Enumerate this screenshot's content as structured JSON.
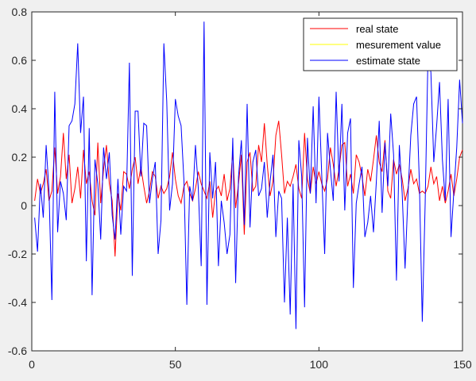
{
  "chart_data": {
    "type": "line",
    "title": "",
    "xlabel": "",
    "ylabel": "",
    "xlim": [
      0,
      150
    ],
    "ylim": [
      -0.6,
      0.8
    ],
    "xticks": [
      0,
      50,
      100,
      150
    ],
    "yticks": [
      -0.6,
      -0.4,
      -0.2,
      0,
      0.2,
      0.4,
      0.6,
      0.8
    ],
    "xtick_labels": [
      "0",
      "50",
      "100",
      "150"
    ],
    "ytick_labels": [
      "-0.6",
      "-0.4",
      "-0.2",
      "0",
      "0.2",
      "0.4",
      "0.6",
      "0.8"
    ],
    "grid": false,
    "legend_position": "top-right",
    "series": [
      {
        "name": "real state",
        "color": "#ff0000",
        "x": [
          1,
          2,
          3,
          4,
          5,
          6,
          7,
          8,
          9,
          10,
          11,
          12,
          13,
          14,
          15,
          16,
          17,
          18,
          19,
          20,
          21,
          22,
          23,
          24,
          25,
          26,
          27,
          28,
          29,
          30,
          31,
          32,
          33,
          34,
          35,
          36,
          37,
          38,
          39,
          40,
          41,
          42,
          43,
          44,
          45,
          46,
          47,
          48,
          49,
          50,
          51,
          52,
          53,
          54,
          55,
          56,
          57,
          58,
          59,
          60,
          61,
          62,
          63,
          64,
          65,
          66,
          67,
          68,
          69,
          70,
          71,
          72,
          73,
          74,
          75,
          76,
          77,
          78,
          79,
          80,
          81,
          82,
          83,
          84,
          85,
          86,
          87,
          88,
          89,
          90,
          91,
          92,
          93,
          94,
          95,
          96,
          97,
          98,
          99,
          100,
          101,
          102,
          103,
          104,
          105,
          106,
          107,
          108,
          109,
          110,
          111,
          112,
          113,
          114,
          115,
          116,
          117,
          118,
          119,
          120,
          121,
          122,
          123,
          124,
          125,
          126,
          127,
          128,
          129,
          130,
          131,
          132,
          133,
          134,
          135,
          136,
          137,
          138,
          139,
          140,
          141,
          142,
          143,
          144,
          145,
          146,
          147,
          148,
          149,
          150
        ],
        "values": [
          0.02,
          0.11,
          0.05,
          0.09,
          0.15,
          0.02,
          0.06,
          0.24,
          0.05,
          0.12,
          0.3,
          0.11,
          0.21,
          0.01,
          0.07,
          0.16,
          0.03,
          0.23,
          0.09,
          0.14,
          0.02,
          -0.04,
          0.26,
          0.01,
          0.15,
          0.25,
          0.09,
          0.02,
          -0.21,
          0.05,
          -0.02,
          0.14,
          0.13,
          0.07,
          0.15,
          0.2,
          0.09,
          0.16,
          0.08,
          0.01,
          0.06,
          0.14,
          0.12,
          0.03,
          0.08,
          0.05,
          0.07,
          0.12,
          0.22,
          0.11,
          0.04,
          0.01,
          0.08,
          0.1,
          0.05,
          0.02,
          0.07,
          0.14,
          0.09,
          0.06,
          0.03,
          0.1,
          -0.05,
          0.06,
          0.08,
          0.04,
          0.13,
          0.02,
          0.07,
          0.22,
          -0.01,
          0.09,
          0.21,
          -0.12,
          0.18,
          0.22,
          0.06,
          0.08,
          0.25,
          0.18,
          0.34,
          0.17,
          0.04,
          0.1,
          0.29,
          0.35,
          0.21,
          0.05,
          0.1,
          0.08,
          0.12,
          0.17,
          0.07,
          0.03,
          0.3,
          0.11,
          0.05,
          0.16,
          0.09,
          0.14,
          0.09,
          0.06,
          0.11,
          0.24,
          0.17,
          0.08,
          0.15,
          0.25,
          0.26,
          0.08,
          0.13,
          0.05,
          0.21,
          0.18,
          0.12,
          0.04,
          0.15,
          0.1,
          0.19,
          0.29,
          0.18,
          0.14,
          0.27,
          0.06,
          0.03,
          0.19,
          0.13,
          0.17,
          0.11,
          0.02,
          0.07,
          0.15,
          0.09,
          0.11,
          0.05,
          0.06,
          0.05,
          0.08,
          0.16,
          0.09,
          0.12,
          0.02,
          0.08,
          0.01,
          0.06,
          0.13,
          0.04,
          0.11,
          0.2,
          0.23
        ]
      },
      {
        "name": "mesurement value",
        "color": "#ffff00",
        "x": [],
        "values": []
      },
      {
        "name": "estimate state",
        "color": "#0000ff",
        "x": [
          1,
          2,
          3,
          4,
          5,
          6,
          7,
          8,
          9,
          10,
          11,
          12,
          13,
          14,
          15,
          16,
          17,
          18,
          19,
          20,
          21,
          22,
          23,
          24,
          25,
          26,
          27,
          28,
          29,
          30,
          31,
          32,
          33,
          34,
          35,
          36,
          37,
          38,
          39,
          40,
          41,
          42,
          43,
          44,
          45,
          46,
          47,
          48,
          49,
          50,
          51,
          52,
          53,
          54,
          55,
          56,
          57,
          58,
          59,
          60,
          61,
          62,
          63,
          64,
          65,
          66,
          67,
          68,
          69,
          70,
          71,
          72,
          73,
          74,
          75,
          76,
          77,
          78,
          79,
          80,
          81,
          82,
          83,
          84,
          85,
          86,
          87,
          88,
          89,
          90,
          91,
          92,
          93,
          94,
          95,
          96,
          97,
          98,
          99,
          100,
          101,
          102,
          103,
          104,
          105,
          106,
          107,
          108,
          109,
          110,
          111,
          112,
          113,
          114,
          115,
          116,
          117,
          118,
          119,
          120,
          121,
          122,
          123,
          124,
          125,
          126,
          127,
          128,
          129,
          130,
          131,
          132,
          133,
          134,
          135,
          136,
          137,
          138,
          139,
          140,
          141,
          142,
          143,
          144,
          145,
          146,
          147,
          148,
          149,
          150
        ],
        "values": [
          -0.05,
          -0.19,
          0.09,
          -0.05,
          0.25,
          0.06,
          -0.39,
          0.47,
          -0.11,
          0.1,
          0.05,
          -0.06,
          0.33,
          0.35,
          0.42,
          0.67,
          0.3,
          0.45,
          -0.23,
          0.32,
          -0.37,
          0.19,
          0.09,
          -0.14,
          0.24,
          0.11,
          0.22,
          -0.04,
          -0.14,
          0.11,
          -0.12,
          0.08,
          0.06,
          0.59,
          -0.29,
          0.39,
          0.39,
          0.12,
          0.34,
          0.33,
          0.01,
          0.11,
          0.18,
          -0.2,
          -0.06,
          0.67,
          0.43,
          -0.02,
          0.09,
          0.44,
          0.37,
          0.33,
          0.1,
          -0.41,
          0.08,
          0.02,
          0.25,
          0.07,
          -0.25,
          0.76,
          -0.41,
          0.22,
          0.03,
          0.18,
          -0.25,
          0.02,
          -0.07,
          -0.2,
          -0.12,
          0.28,
          -0.32,
          0.12,
          0.27,
          -0.08,
          0.42,
          -0.09,
          0.18,
          0.23,
          0.04,
          0.07,
          0.18,
          -0.05,
          0.1,
          0.21,
          -0.13,
          0.06,
          0.03,
          -0.4,
          -0.05,
          -0.45,
          0.09,
          -0.51,
          0.27,
          0.12,
          -0.42,
          0.28,
          0.05,
          0.41,
          0.01,
          0.45,
          0.12,
          -0.2,
          0.3,
          0.15,
          0.02,
          0.47,
          0.1,
          0.42,
          -0.02,
          0.3,
          0.36,
          -0.34,
          0.01,
          0.09,
          0.16,
          -0.13,
          -0.07,
          0.04,
          -0.11,
          0.1,
          0.35,
          -0.03,
          0.26,
          0.08,
          0.38,
          0.21,
          -0.31,
          0.25,
          0.05,
          -0.26,
          0.04,
          0.29,
          0.42,
          0.45,
          0.09,
          -0.48,
          0.01,
          0.63,
          0.55,
          0.18,
          0.33,
          0.51,
          0.19,
          0.02,
          0.44,
          -0.13,
          0.06,
          0.24,
          0.52,
          0.34
        ]
      }
    ]
  }
}
